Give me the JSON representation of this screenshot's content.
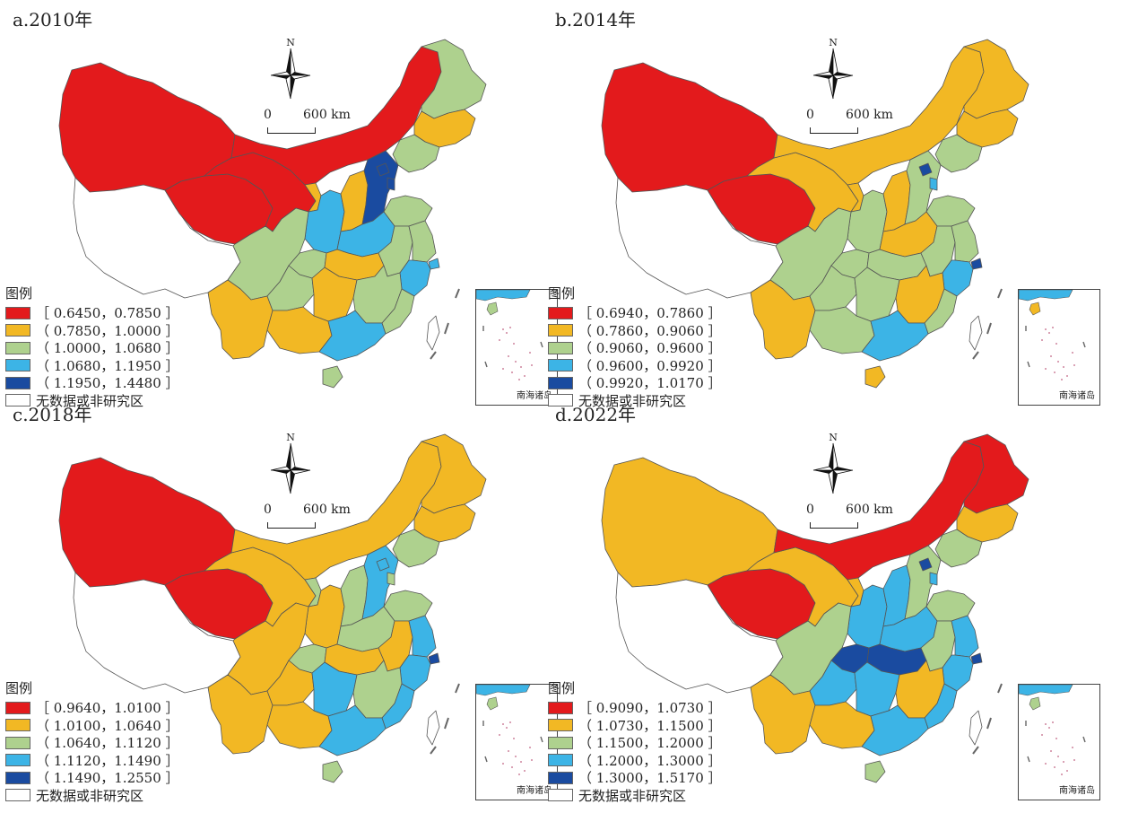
{
  "north_label": "N",
  "scale": {
    "zero": "0",
    "dist": "600 km"
  },
  "legend_title": "图例",
  "nodata_label": "无数据或非研究区",
  "inset_label": "南海诸岛",
  "colors": {
    "c1": "#e31a1c",
    "c2": "#f2b824",
    "c3": "#aed18e",
    "c4": "#3cb4e6",
    "c5": "#1a4ba0",
    "c0": "#ffffff"
  },
  "panels": [
    {
      "title": "a.2010年",
      "legend": [
        "［ 0.6450，0.7850 ］",
        "（ 0.7850，1.0000 ］",
        "（ 1.0000，1.0680 ］",
        "（ 1.0680，1.1950 ］",
        "（ 1.1950，1.4480 ］"
      ],
      "region_classes": {
        "xinjiang": 1,
        "tibet": 0,
        "qinghai": 1,
        "gansu": 1,
        "innermongolia": 1,
        "heilongjiang": 3,
        "jilin": 2,
        "liaoning": 3,
        "ningxia": 2,
        "shaanxi": 4,
        "shanxi": 2,
        "hebei": 5,
        "beijing": 5,
        "tianjin": 5,
        "shandong": 3,
        "henan": 4,
        "sichuan": 3,
        "chongqing": 3,
        "hubei": 2,
        "anhui": 3,
        "jiangsu": 3,
        "shanghai": 4,
        "zhejiang": 4,
        "yunnan": 2,
        "guizhou": 3,
        "hunan": 2,
        "jiangxi": 3,
        "fujian": 3,
        "guangxi": 2,
        "guangdong": 4,
        "hainan": 3,
        "taiwan": 0
      }
    },
    {
      "title": "b.2014年",
      "legend": [
        "［ 0.6940，0.7860 ］",
        "（ 0.7860，0.9060 ］",
        "（ 0.9060，0.9600 ］",
        "（ 0.9600，0.9920 ］",
        "（ 0.9920，1.0170 ］"
      ],
      "region_classes": {
        "xinjiang": 1,
        "tibet": 0,
        "qinghai": 1,
        "gansu": 2,
        "innermongolia": 2,
        "heilongjiang": 2,
        "jilin": 2,
        "liaoning": 3,
        "ningxia": 2,
        "shaanxi": 3,
        "shanxi": 2,
        "hebei": 3,
        "beijing": 5,
        "tianjin": 4,
        "shandong": 3,
        "henan": 2,
        "sichuan": 3,
        "chongqing": 3,
        "hubei": 3,
        "anhui": 3,
        "jiangsu": 3,
        "shanghai": 5,
        "zhejiang": 4,
        "yunnan": 2,
        "guizhou": 3,
        "hunan": 3,
        "jiangxi": 2,
        "fujian": 3,
        "guangxi": 3,
        "guangdong": 4,
        "hainan": 2,
        "taiwan": 0
      }
    },
    {
      "title": "c.2018年",
      "legend": [
        "［ 0.9640，1.0100 ］",
        "（ 1.0100，1.0640 ］",
        "（ 1.0640，1.1120 ］",
        "（ 1.1120，1.1490 ］",
        "（ 1.1490，1.2550 ］"
      ],
      "region_classes": {
        "xinjiang": 1,
        "tibet": 0,
        "qinghai": 1,
        "gansu": 2,
        "innermongolia": 2,
        "heilongjiang": 2,
        "jilin": 2,
        "liaoning": 3,
        "ningxia": 3,
        "shaanxi": 2,
        "shanxi": 3,
        "hebei": 4,
        "beijing": 4,
        "tianjin": 3,
        "shandong": 3,
        "henan": 3,
        "sichuan": 2,
        "chongqing": 3,
        "hubei": 2,
        "anhui": 2,
        "jiangsu": 4,
        "shanghai": 5,
        "zhejiang": 4,
        "yunnan": 2,
        "guizhou": 2,
        "hunan": 4,
        "jiangxi": 3,
        "fujian": 4,
        "guangxi": 2,
        "guangdong": 4,
        "hainan": 3,
        "taiwan": 0
      }
    },
    {
      "title": "d.2022年",
      "legend": [
        "［ 0.9090，1.0730 ］",
        "（ 1.0730，1.1500 ］",
        "（ 1.1500，1.2000 ］",
        "（ 1.2000，1.3000 ］",
        "（ 1.3000，1.5170 ］"
      ],
      "region_classes": {
        "xinjiang": 2,
        "tibet": 0,
        "qinghai": 1,
        "gansu": 2,
        "innermongolia": 1,
        "heilongjiang": 1,
        "jilin": 2,
        "liaoning": 3,
        "ningxia": 2,
        "shaanxi": 4,
        "shanxi": 4,
        "hebei": 3,
        "beijing": 5,
        "tianjin": 4,
        "shandong": 3,
        "henan": 4,
        "sichuan": 3,
        "chongqing": 5,
        "hubei": 5,
        "anhui": 3,
        "jiangsu": 4,
        "shanghai": 5,
        "zhejiang": 4,
        "yunnan": 2,
        "guizhou": 4,
        "hunan": 4,
        "jiangxi": 2,
        "fujian": 4,
        "guangxi": 2,
        "guangdong": 4,
        "hainan": 3,
        "taiwan": 0
      }
    }
  ]
}
